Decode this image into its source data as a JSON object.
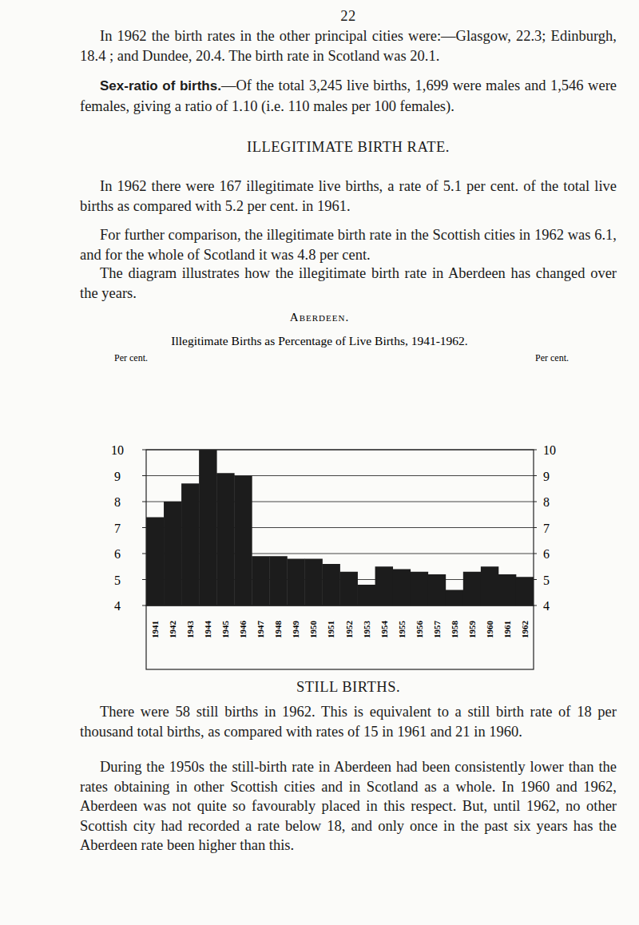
{
  "page_number": "22",
  "blocks_before": [
    {
      "kind": "paragraph",
      "text": "In 1962 the birth rates in the other principal cities were:—Glasgow, 22.3; Edinburgh, 18.4 ; and Dundee, 20.4. The birth rate in Scotland was 20.1."
    },
    {
      "kind": "paragraph",
      "lead": "Sex-ratio of births.",
      "text": "—Of the total 3,245 live births, 1,699 were males and 1,546 were females, giving a ratio of 1.10 (i.e. 110 males per 100 females)."
    },
    {
      "kind": "heading",
      "text": "ILLEGITIMATE BIRTH RATE."
    },
    {
      "kind": "paragraph",
      "text": "In 1962 there were 167 illegitimate live births, a rate of 5.1 per cent. of the total live births as compared with 5.2 per cent. in 1961."
    },
    {
      "kind": "paragraph",
      "text": "For further comparison, the illegitimate birth rate in the Scottish cities in 1962 was 6.1, and for the whole of Scotland it was 4.8 per cent."
    },
    {
      "kind": "paragraph",
      "text": "The diagram illustrates how the illegitimate birth rate in Aberdeen has changed over the years."
    }
  ],
  "chart_heading": "Aberdeen.",
  "chart_data": {
    "type": "bar",
    "title": "Illegitimate Births as Percentage of Live Births, 1941-1962.",
    "ylabel": "Per cent.",
    "y2label": "Per cent.",
    "categories": [
      "1941",
      "1942",
      "1943",
      "1944",
      "1945",
      "1946",
      "1947",
      "1948",
      "1949",
      "1950",
      "1951",
      "1952",
      "1953",
      "1954",
      "1955",
      "1956",
      "1957",
      "1958",
      "1959",
      "1960",
      "1961",
      "1962"
    ],
    "values": [
      7.4,
      8.0,
      8.7,
      10.0,
      9.1,
      9.0,
      5.9,
      5.9,
      5.8,
      5.8,
      5.6,
      5.3,
      4.8,
      5.5,
      5.4,
      5.3,
      5.2,
      4.6,
      5.3,
      5.5,
      5.2,
      5.1
    ],
    "color": "#1c1c1c",
    "ylim": [
      4,
      10
    ],
    "yticks": [
      4,
      5,
      6,
      7,
      8,
      9,
      10
    ],
    "y2lim": [
      4,
      10
    ],
    "y2ticks": [
      4,
      5,
      6,
      7,
      8,
      9,
      10
    ],
    "grid": true
  },
  "blocks_after": [
    {
      "kind": "heading",
      "text": "STILL BIRTHS."
    },
    {
      "kind": "paragraph",
      "text": "There were 58 still births in 1962. This is equivalent to a still birth rate of 18 per thousand total births, as compared with rates of 15 in 1961 and 21 in 1960."
    },
    {
      "kind": "paragraph",
      "text": "During the 1950s the still-birth rate in Aberdeen had been consistently lower than the rates obtaining in other Scottish cities and in Scotland as a whole. In 1960 and 1962, Aberdeen was not quite so favourably placed in this respect. But, until 1962, no other Scottish city had recorded a rate below 18, and only once in the past six years has the Aberdeen rate been higher than this."
    }
  ]
}
